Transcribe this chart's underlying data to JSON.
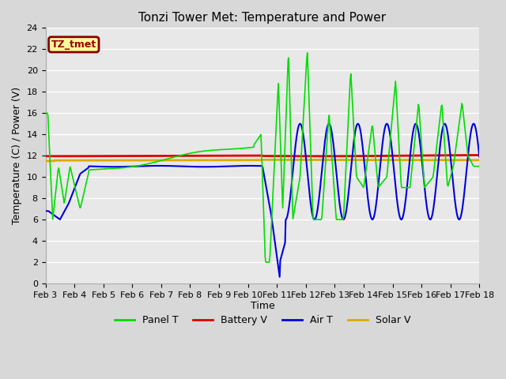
{
  "title": "Tonzi Tower Met: Temperature and Power",
  "xlabel": "Time",
  "ylabel": "Temperature (C) / Power (V)",
  "ylim": [
    0,
    24
  ],
  "yticks": [
    0,
    2,
    4,
    6,
    8,
    10,
    12,
    14,
    16,
    18,
    20,
    22,
    24
  ],
  "xtick_labels": [
    "Feb 3",
    "Feb 4",
    "Feb 5",
    "Feb 6",
    "Feb 7",
    "Feb 8",
    "Feb 9",
    "Feb 10",
    "Feb 11",
    "Feb 12",
    "Feb 13",
    "Feb 14",
    "Feb 15",
    "Feb 16",
    "Feb 17",
    "Feb 18"
  ],
  "legend_label_box": "TZ_tmet",
  "legend_entries": [
    "Panel T",
    "Battery V",
    "Air T",
    "Solar V"
  ],
  "panel_t_color": "#00dd00",
  "battery_v_color": "#dd0000",
  "air_t_color": "#0000dd",
  "solar_v_color": "#ddaa00",
  "background_color": "#d8d8d8",
  "plot_bg_color": "#e8e8e8",
  "grid_color": "#ffffff",
  "title_fontsize": 11,
  "tick_fontsize": 8,
  "label_fontsize": 9
}
